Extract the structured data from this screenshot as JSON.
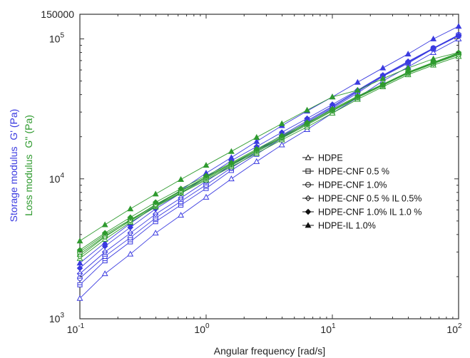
{
  "chart_data": {
    "type": "line",
    "xscale": "log",
    "yscale": "log",
    "xlim": [
      0.1,
      100
    ],
    "ylim": [
      1000,
      150000
    ],
    "xlabel": "Angular frequency [rad/s]",
    "ylabel_storage": {
      "text": "Storage modulus",
      "symbol": "G' (Pa)",
      "color": "#3a3ae0"
    },
    "ylabel_loss": {
      "text": "Loss modulus",
      "symbol": "G'' (Pa)",
      "color": "#2e9a2e"
    },
    "x_ticks": [
      {
        "value": 0.1,
        "base": "10",
        "exp": "-1"
      },
      {
        "value": 1,
        "base": "10",
        "exp": "0"
      },
      {
        "value": 10,
        "base": "10",
        "exp": "1"
      },
      {
        "value": 100,
        "base": "10",
        "exp": "2"
      }
    ],
    "y_ticks": [
      {
        "value": 1000,
        "base": "10",
        "exp": "3"
      },
      {
        "value": 10000,
        "base": "10",
        "exp": "4"
      },
      {
        "value": 100000,
        "base": "10",
        "exp": "5"
      },
      {
        "value": 150000,
        "text": "150000"
      }
    ],
    "legend_position": "center-right",
    "legend": [
      {
        "label": "HDPE",
        "marker": "tri-open"
      },
      {
        "label": "HDPE-CNF 0.5 %",
        "marker": "square-line"
      },
      {
        "label": "HDPE-CNF 1.0%",
        "marker": "circle-line"
      },
      {
        "label": "HDPE-CNF 0.5 % IL 0.5%",
        "marker": "diamond-line"
      },
      {
        "label": "HDPE-CNF 1.0% IL 1.0 %",
        "marker": "diamond-filled"
      },
      {
        "label": "HDPE-IL 1.0%",
        "marker": "tri-filled"
      }
    ],
    "colors": {
      "storage": "#3a3ae0",
      "loss": "#2e9a2e"
    },
    "x": [
      0.1,
      0.158,
      0.251,
      0.398,
      0.631,
      1,
      1.585,
      2.512,
      3.981,
      6.31,
      10,
      15.85,
      25.12,
      39.81,
      63.1,
      100
    ],
    "series": [
      {
        "group": "storage",
        "marker": "tri-open",
        "values": [
          1400,
          2100,
          2900,
          4100,
          5500,
          7400,
          10000,
          13300,
          17500,
          22500,
          29500,
          38000,
          50000,
          63000,
          80000,
          100000
        ]
      },
      {
        "group": "storage",
        "marker": "square-line",
        "values": [
          1750,
          2600,
          3550,
          4950,
          6500,
          8550,
          11500,
          15000,
          19500,
          25000,
          32000,
          41000,
          54000,
          67000,
          85000,
          106000
        ]
      },
      {
        "group": "storage",
        "marker": "circle-line",
        "values": [
          1950,
          2800,
          3800,
          5250,
          6900,
          9050,
          12000,
          15500,
          20000,
          25500,
          32500,
          42000,
          54500,
          68000,
          86000,
          107000
        ]
      },
      {
        "group": "storage",
        "marker": "diamond-line",
        "values": [
          2100,
          3000,
          4100,
          5600,
          7300,
          9600,
          12500,
          16000,
          20500,
          26000,
          33000,
          42500,
          55000,
          68000,
          85000,
          105000
        ]
      },
      {
        "group": "storage",
        "marker": "diamond-filled",
        "values": [
          2300,
          3300,
          4500,
          6100,
          7900,
          10300,
          13500,
          17000,
          21500,
          27000,
          34000,
          43000,
          55000,
          69000,
          86000,
          106000
        ]
      },
      {
        "group": "storage",
        "marker": "tri-filled",
        "values": [
          2500,
          3500,
          4800,
          6400,
          8300,
          11000,
          14200,
          18500,
          24000,
          30500,
          38500,
          49000,
          62000,
          78000,
          100000,
          123000
        ]
      },
      {
        "group": "loss",
        "marker": "tri-open",
        "values": [
          2700,
          3700,
          4900,
          6300,
          7900,
          9800,
          12200,
          15200,
          19000,
          23500,
          29500,
          37000,
          45500,
          55500,
          65000,
          75000
        ]
      },
      {
        "group": "loss",
        "marker": "square-line",
        "values": [
          2900,
          3900,
          5000,
          6400,
          8000,
          10000,
          12500,
          15600,
          19500,
          24300,
          30500,
          38000,
          46500,
          57000,
          67000,
          78000
        ]
      },
      {
        "group": "loss",
        "marker": "circle-line",
        "values": [
          3000,
          4000,
          5100,
          6500,
          8150,
          10200,
          12700,
          15900,
          19800,
          24700,
          31000,
          38500,
          47000,
          57500,
          67500,
          79000
        ]
      },
      {
        "group": "loss",
        "marker": "diamond-line",
        "values": [
          2800,
          3850,
          5050,
          6550,
          8250,
          10300,
          12800,
          16000,
          19900,
          24800,
          31000,
          38300,
          46800,
          56800,
          66500,
          77000
        ]
      },
      {
        "group": "loss",
        "marker": "diamond-filled",
        "values": [
          3100,
          4100,
          5300,
          6800,
          8500,
          10500,
          13000,
          16300,
          20300,
          25200,
          31500,
          39000,
          47500,
          58000,
          68000,
          79500
        ]
      },
      {
        "group": "loss",
        "marker": "tri-filled",
        "values": [
          3600,
          4700,
          6100,
          7800,
          9900,
          12500,
          15700,
          19800,
          24800,
          31000,
          38500,
          43000,
          52000,
          62000,
          72000,
          80000
        ]
      }
    ]
  }
}
